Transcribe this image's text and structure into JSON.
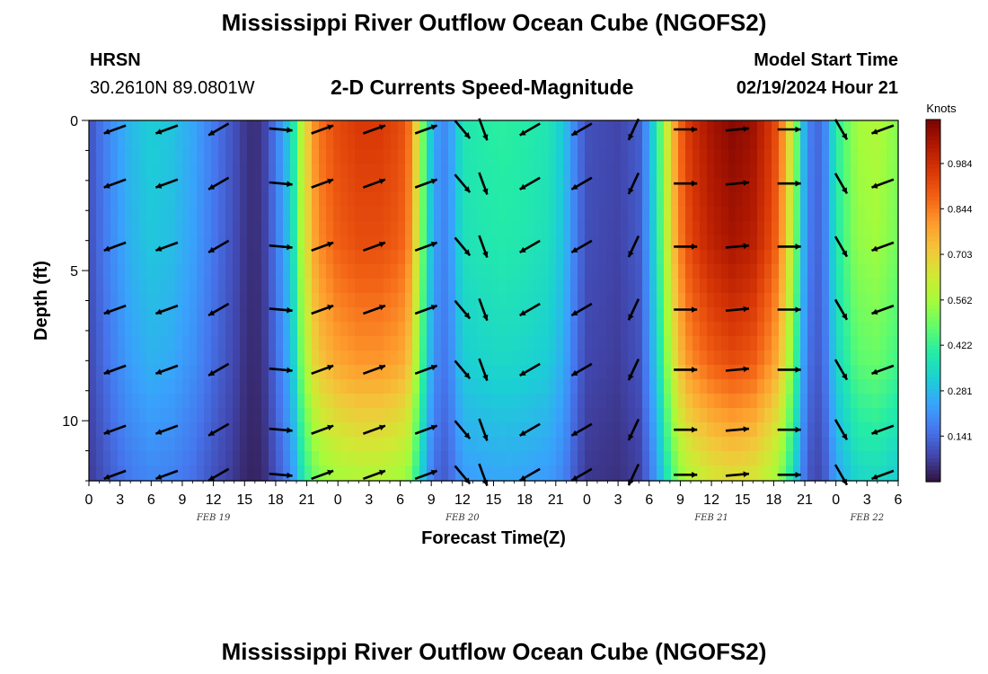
{
  "page_title": "Mississippi River Outflow Ocean Cube (NGOFS2)",
  "page_title_bottom": "Mississippi River Outflow Ocean Cube (NGOFS2)",
  "station": {
    "name": "HRSN",
    "coords": "30.2610N  89.0801W"
  },
  "model": {
    "label": "Model Start Time",
    "value": "02/19/2024 Hour 21"
  },
  "chart_data": {
    "type": "heatmap",
    "title": "2-D Currents Speed-Magnitude",
    "xlabel": "Forecast Time(Z)",
    "ylabel": "Depth (ft)",
    "x_unit": "hours from 00Z Feb 19",
    "x_range": [
      0,
      78
    ],
    "y_range": [
      0,
      12
    ],
    "x_ticks": [
      {
        "h": 0,
        "label": "0"
      },
      {
        "h": 3,
        "label": "3"
      },
      {
        "h": 6,
        "label": "6"
      },
      {
        "h": 9,
        "label": "9"
      },
      {
        "h": 12,
        "label": "12"
      },
      {
        "h": 15,
        "label": "15"
      },
      {
        "h": 18,
        "label": "18"
      },
      {
        "h": 21,
        "label": "21"
      },
      {
        "h": 24,
        "label": "0"
      },
      {
        "h": 27,
        "label": "3"
      },
      {
        "h": 30,
        "label": "6"
      },
      {
        "h": 33,
        "label": "9"
      },
      {
        "h": 36,
        "label": "12"
      },
      {
        "h": 39,
        "label": "15"
      },
      {
        "h": 42,
        "label": "18"
      },
      {
        "h": 45,
        "label": "21"
      },
      {
        "h": 48,
        "label": "0"
      },
      {
        "h": 51,
        "label": "3"
      },
      {
        "h": 54,
        "label": "6"
      },
      {
        "h": 57,
        "label": "9"
      },
      {
        "h": 60,
        "label": "12"
      },
      {
        "h": 63,
        "label": "15"
      },
      {
        "h": 66,
        "label": "18"
      },
      {
        "h": 69,
        "label": "21"
      },
      {
        "h": 72,
        "label": "0"
      },
      {
        "h": 75,
        "label": "3"
      },
      {
        "h": 78,
        "label": "6"
      }
    ],
    "date_labels": [
      {
        "h": 12,
        "label": "FEB 19"
      },
      {
        "h": 36,
        "label": "FEB 20"
      },
      {
        "h": 60,
        "label": "FEB 21"
      },
      {
        "h": 75,
        "label": "FEB 22"
      }
    ],
    "y_ticks": [
      {
        "v": 0,
        "label": "0"
      },
      {
        "v": 5,
        "label": "5"
      },
      {
        "v": 10,
        "label": "10"
      }
    ],
    "colorbar": {
      "unit": "Knots",
      "range": [
        0.0,
        1.12
      ],
      "ticks": [
        0.141,
        0.281,
        0.422,
        0.562,
        0.703,
        0.844,
        0.984
      ],
      "tick_labels": [
        "0.141",
        "0.281",
        "0.422",
        "0.562",
        "0.703",
        "0.844",
        "0.984"
      ],
      "colors": [
        "#30123b",
        "#4145ab",
        "#4675ed",
        "#39a2fc",
        "#1bcfd4",
        "#24eca6",
        "#61fc6c",
        "#a4fc3b",
        "#d1e834",
        "#f3c63a",
        "#fe9b2d",
        "#f36315",
        "#d93806",
        "#b11901",
        "#7a0402"
      ]
    },
    "speed_profile": {
      "hours": [
        0,
        2,
        4,
        6,
        8,
        10,
        12,
        14,
        15,
        16,
        17,
        18,
        19,
        19.7,
        20,
        21,
        22,
        24,
        26,
        28,
        30,
        31,
        32,
        33,
        34,
        35,
        36,
        38,
        40,
        42,
        44,
        45,
        46,
        47,
        48,
        51,
        53,
        54,
        55,
        56,
        57,
        58,
        60,
        62,
        64,
        66,
        67,
        68,
        69,
        70,
        71,
        72,
        74,
        76,
        78
      ],
      "speed_kn": [
        0.1,
        0.2,
        0.28,
        0.32,
        0.3,
        0.25,
        0.17,
        0.1,
        0.06,
        0.04,
        0.08,
        0.17,
        0.28,
        0.38,
        0.5,
        0.7,
        0.85,
        0.93,
        0.96,
        0.96,
        0.93,
        0.85,
        0.55,
        0.3,
        0.18,
        0.25,
        0.38,
        0.4,
        0.41,
        0.4,
        0.38,
        0.35,
        0.28,
        0.17,
        0.1,
        0.08,
        0.12,
        0.25,
        0.45,
        0.7,
        0.88,
        0.98,
        1.06,
        1.1,
        1.07,
        0.95,
        0.8,
        0.55,
        0.25,
        0.12,
        0.2,
        0.4,
        0.56,
        0.58,
        0.52
      ]
    },
    "depth_factor": {
      "depths_ft": [
        0,
        4,
        8,
        12
      ],
      "factor": [
        1.0,
        0.96,
        0.84,
        0.6
      ]
    },
    "arrow_depths_ft": [
      0.3,
      2.1,
      4.2,
      6.3,
      8.3,
      10.3,
      11.8
    ],
    "arrows": [
      {
        "h": 2.5,
        "dir": 250
      },
      {
        "h": 7.5,
        "dir": 250
      },
      {
        "h": 12.5,
        "dir": 240
      },
      {
        "h": 18.5,
        "dir": 95
      },
      {
        "h": 22.5,
        "dir": 70
      },
      {
        "h": 27.5,
        "dir": 70
      },
      {
        "h": 32.5,
        "dir": 70
      },
      {
        "h": 36,
        "dir": 140
      },
      {
        "h": 38,
        "dir": 160
      },
      {
        "h": 42.5,
        "dir": 240
      },
      {
        "h": 47.5,
        "dir": 240
      },
      {
        "h": 52.5,
        "dir": 205
      },
      {
        "h": 57.5,
        "dir": 90
      },
      {
        "h": 62.5,
        "dir": 85
      },
      {
        "h": 67.5,
        "dir": 90
      },
      {
        "h": 72.5,
        "dir": 150
      },
      {
        "h": 76.5,
        "dir": 250
      }
    ]
  }
}
